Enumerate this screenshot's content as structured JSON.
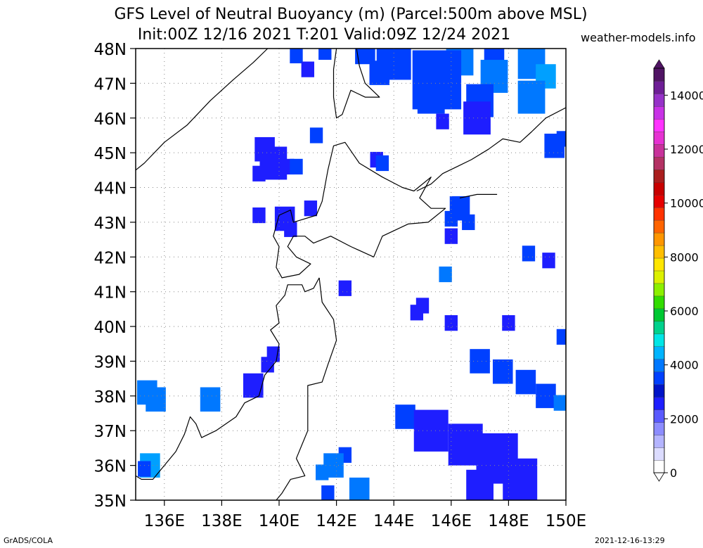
{
  "title_line1": "GFS Level of Neutral Buoyancy (m) (Parcel:500m above MSL)",
  "title_line2": "Init:00Z 12/16 2021 T:201 Valid:09Z 12/24 2021",
  "site": "weather-models.info",
  "footer_left": "GrADS/COLA",
  "footer_right": "2021-12-16-13:29",
  "lat_labels": [
    "48N",
    "47N",
    "46N",
    "45N",
    "44N",
    "43N",
    "42N",
    "41N",
    "40N",
    "39N",
    "38N",
    "37N",
    "36N",
    "35N"
  ],
  "lon_labels": [
    "136E",
    "138E",
    "140E",
    "142E",
    "144E",
    "146E",
    "148E",
    "150E"
  ],
  "colorbar": {
    "labels": [
      "0",
      "2000",
      "4000",
      "6000",
      "8000",
      "10000",
      "12000",
      "14000"
    ],
    "max_value": 15000,
    "colors": [
      "#ffffff",
      "#dcdcff",
      "#b4b4ff",
      "#8c8cff",
      "#5a5aff",
      "#1e1eff",
      "#0014c8",
      "#0040ff",
      "#0078ff",
      "#00b4ff",
      "#00e6e6",
      "#00d28c",
      "#00c832",
      "#32dc00",
      "#8cf000",
      "#dcf000",
      "#ffe600",
      "#ffbe00",
      "#ff9600",
      "#ff6400",
      "#ff3200",
      "#e60000",
      "#c80000",
      "#aa1e1e",
      "#b43264",
      "#c8329b",
      "#e632d2",
      "#ff32ff",
      "#c832e6",
      "#9632c8",
      "#6e1e96",
      "#501464"
    ]
  },
  "map": {
    "lon_range": [
      135,
      150
    ],
    "lat_range": [
      35,
      48
    ],
    "field_colors": {
      "a": "#1e1eff",
      "b": "#0040ff",
      "c": "#0078ff",
      "d": "#00a0ff"
    },
    "cells": [
      [
        140.6,
        47.8,
        1,
        "b"
      ],
      [
        141.6,
        47.9,
        1,
        "b"
      ],
      [
        143.0,
        47.9,
        2,
        "b"
      ],
      [
        144.0,
        47.7,
        4,
        "b"
      ],
      [
        146.3,
        47.7,
        3,
        "c"
      ],
      [
        147.5,
        47.7,
        2,
        "b"
      ],
      [
        148.8,
        47.6,
        3,
        "c"
      ],
      [
        141.0,
        47.4,
        1,
        "a"
      ],
      [
        143.5,
        47.3,
        2,
        "b"
      ],
      [
        145.5,
        47.1,
        6,
        "b"
      ],
      [
        147.5,
        47.2,
        3,
        "c"
      ],
      [
        149.3,
        47.2,
        2,
        "d"
      ],
      [
        145.3,
        46.6,
        3,
        "b"
      ],
      [
        147.0,
        46.5,
        3,
        "b"
      ],
      [
        148.8,
        46.6,
        3,
        "c"
      ],
      [
        146.9,
        46.0,
        3,
        "a"
      ],
      [
        145.7,
        45.9,
        1,
        "a"
      ],
      [
        139.5,
        45.1,
        2,
        "a"
      ],
      [
        139.8,
        44.7,
        3,
        "a"
      ],
      [
        139.3,
        44.4,
        1,
        "a"
      ],
      [
        140.3,
        44.6,
        1,
        "a"
      ],
      [
        140.6,
        44.6,
        1,
        "b"
      ],
      [
        141.3,
        45.5,
        1,
        "b"
      ],
      [
        149.6,
        45.2,
        2,
        "b"
      ],
      [
        149.9,
        45.4,
        1,
        "b"
      ],
      [
        143.4,
        44.8,
        1,
        "a"
      ],
      [
        143.6,
        44.7,
        1,
        "b"
      ],
      [
        141.1,
        43.4,
        1,
        "a"
      ],
      [
        140.2,
        43.1,
        2,
        "a"
      ],
      [
        140.4,
        42.8,
        1,
        "a"
      ],
      [
        139.3,
        43.2,
        1,
        "a"
      ],
      [
        146.3,
        43.4,
        2,
        "b"
      ],
      [
        146.0,
        43.1,
        1,
        "b"
      ],
      [
        146.6,
        43.0,
        1,
        "b"
      ],
      [
        146.0,
        42.6,
        1,
        "a"
      ],
      [
        148.7,
        42.1,
        1,
        "b"
      ],
      [
        149.4,
        41.9,
        1,
        "a"
      ],
      [
        145.8,
        41.5,
        1,
        "c"
      ],
      [
        142.3,
        41.1,
        1,
        "a"
      ],
      [
        144.8,
        40.4,
        1,
        "a"
      ],
      [
        145.0,
        40.6,
        1,
        "a"
      ],
      [
        146.0,
        40.1,
        1,
        "a"
      ],
      [
        148.0,
        40.1,
        1,
        "a"
      ],
      [
        149.9,
        39.7,
        1,
        "b"
      ],
      [
        139.8,
        39.2,
        1,
        "a"
      ],
      [
        139.6,
        38.9,
        1,
        "a"
      ],
      [
        147.0,
        39.0,
        2,
        "b"
      ],
      [
        147.8,
        38.7,
        2,
        "b"
      ],
      [
        148.6,
        38.4,
        2,
        "b"
      ],
      [
        149.3,
        38.0,
        2,
        "b"
      ],
      [
        149.8,
        37.8,
        1,
        "c"
      ],
      [
        135.4,
        38.1,
        2,
        "c"
      ],
      [
        135.7,
        37.9,
        2,
        "c"
      ],
      [
        137.6,
        37.9,
        2,
        "c"
      ],
      [
        139.1,
        38.3,
        2,
        "a"
      ],
      [
        144.4,
        37.4,
        2,
        "b"
      ],
      [
        145.3,
        37.0,
        4,
        "a"
      ],
      [
        146.5,
        36.6,
        4,
        "a"
      ],
      [
        147.6,
        36.2,
        5,
        "a"
      ],
      [
        148.4,
        35.6,
        4,
        "a"
      ],
      [
        147.0,
        35.4,
        3,
        "a"
      ],
      [
        142.3,
        36.3,
        1,
        "b"
      ],
      [
        141.9,
        36.0,
        2,
        "c"
      ],
      [
        141.5,
        35.8,
        1,
        "c"
      ],
      [
        142.8,
        35.3,
        2,
        "c"
      ],
      [
        141.7,
        35.2,
        1,
        "b"
      ],
      [
        135.5,
        36.0,
        2,
        "d"
      ],
      [
        135.3,
        35.9,
        1,
        "b"
      ]
    ],
    "coasts": [
      [
        [
          135,
          44.5
        ],
        [
          135.3,
          44.7
        ],
        [
          136,
          45.3
        ],
        [
          136.8,
          45.8
        ],
        [
          137.6,
          46.5
        ],
        [
          138.4,
          47.1
        ],
        [
          139.1,
          47.6
        ],
        [
          139.6,
          48
        ]
      ],
      [
        [
          142.0,
          48
        ],
        [
          141.9,
          47.4
        ],
        [
          141.9,
          46.6
        ],
        [
          142.0,
          46.0
        ],
        [
          142.2,
          46.1
        ],
        [
          142.5,
          46.8
        ],
        [
          143.0,
          46.6
        ],
        [
          143.5,
          46.6
        ],
        [
          143.0,
          47.0
        ],
        [
          142.8,
          47.5
        ],
        [
          142.7,
          48
        ]
      ],
      [
        [
          140.0,
          43.2
        ],
        [
          140.4,
          43.35
        ],
        [
          140.5,
          43.0
        ],
        [
          141.3,
          43.2
        ],
        [
          141.5,
          43.6
        ],
        [
          141.7,
          44.5
        ],
        [
          141.9,
          45.2
        ],
        [
          142.3,
          45.3
        ],
        [
          142.8,
          44.7
        ],
        [
          143.6,
          44.3
        ],
        [
          144.3,
          44.0
        ],
        [
          144.7,
          43.9
        ],
        [
          145.3,
          44.3
        ],
        [
          144.9,
          43.7
        ],
        [
          145.3,
          43.4
        ],
        [
          145.8,
          43.4
        ],
        [
          145.2,
          43.0
        ],
        [
          144.5,
          42.95
        ],
        [
          143.6,
          42.6
        ],
        [
          143.3,
          42.0
        ],
        [
          142.5,
          42.3
        ],
        [
          141.8,
          42.6
        ],
        [
          141.2,
          42.4
        ],
        [
          140.9,
          42.6
        ],
        [
          140.5,
          42.6
        ],
        [
          140.3,
          42.3
        ],
        [
          140.6,
          42.0
        ],
        [
          141.1,
          41.8
        ],
        [
          140.7,
          41.5
        ],
        [
          140.1,
          41.4
        ],
        [
          139.9,
          41.7
        ],
        [
          140.0,
          42.3
        ],
        [
          139.8,
          42.6
        ],
        [
          140.0,
          43.2
        ]
      ],
      [
        [
          141.4,
          41.4
        ],
        [
          141.2,
          41.1
        ],
        [
          140.9,
          41.0
        ],
        [
          140.8,
          41.2
        ],
        [
          140.3,
          41.2
        ],
        [
          140.2,
          40.9
        ],
        [
          139.9,
          40.6
        ],
        [
          140.0,
          40.1
        ],
        [
          139.7,
          39.9
        ],
        [
          140.0,
          39.5
        ],
        [
          139.9,
          39.0
        ],
        [
          139.5,
          38.6
        ],
        [
          139.3,
          38.0
        ],
        [
          138.8,
          37.8
        ],
        [
          138.5,
          37.4
        ],
        [
          137.8,
          37.0
        ],
        [
          137.3,
          36.8
        ],
        [
          137.1,
          37.2
        ],
        [
          136.9,
          37.4
        ],
        [
          136.7,
          36.9
        ],
        [
          136.4,
          36.4
        ],
        [
          136.0,
          36.0
        ],
        [
          135.6,
          35.6
        ],
        [
          135.2,
          35.6
        ],
        [
          135.0,
          35.7
        ]
      ],
      [
        [
          141.4,
          41.4
        ],
        [
          141.5,
          40.7
        ],
        [
          141.9,
          40.2
        ],
        [
          142.0,
          39.6
        ],
        [
          141.7,
          38.9
        ],
        [
          141.5,
          38.4
        ],
        [
          141.0,
          38.3
        ],
        [
          141.0,
          37.7
        ],
        [
          141.0,
          37.0
        ],
        [
          140.8,
          36.6
        ],
        [
          140.6,
          36.2
        ],
        [
          140.9,
          35.7
        ],
        [
          140.4,
          35.6
        ],
        [
          140.1,
          35.2
        ],
        [
          139.9,
          35.0
        ]
      ],
      [
        [
          144.8,
          43.9
        ],
        [
          145.3,
          44.1
        ],
        [
          145.7,
          44.4
        ],
        [
          146.2,
          44.6
        ],
        [
          146.7,
          44.8
        ],
        [
          147.3,
          45.1
        ],
        [
          147.8,
          45.4
        ],
        [
          148.4,
          45.3
        ],
        [
          148.8,
          45.6
        ],
        [
          149.3,
          46.0
        ],
        [
          150.0,
          46.3
        ]
      ],
      [
        [
          146.3,
          43.7
        ],
        [
          146.9,
          43.8
        ],
        [
          147.6,
          43.8
        ]
      ]
    ]
  }
}
